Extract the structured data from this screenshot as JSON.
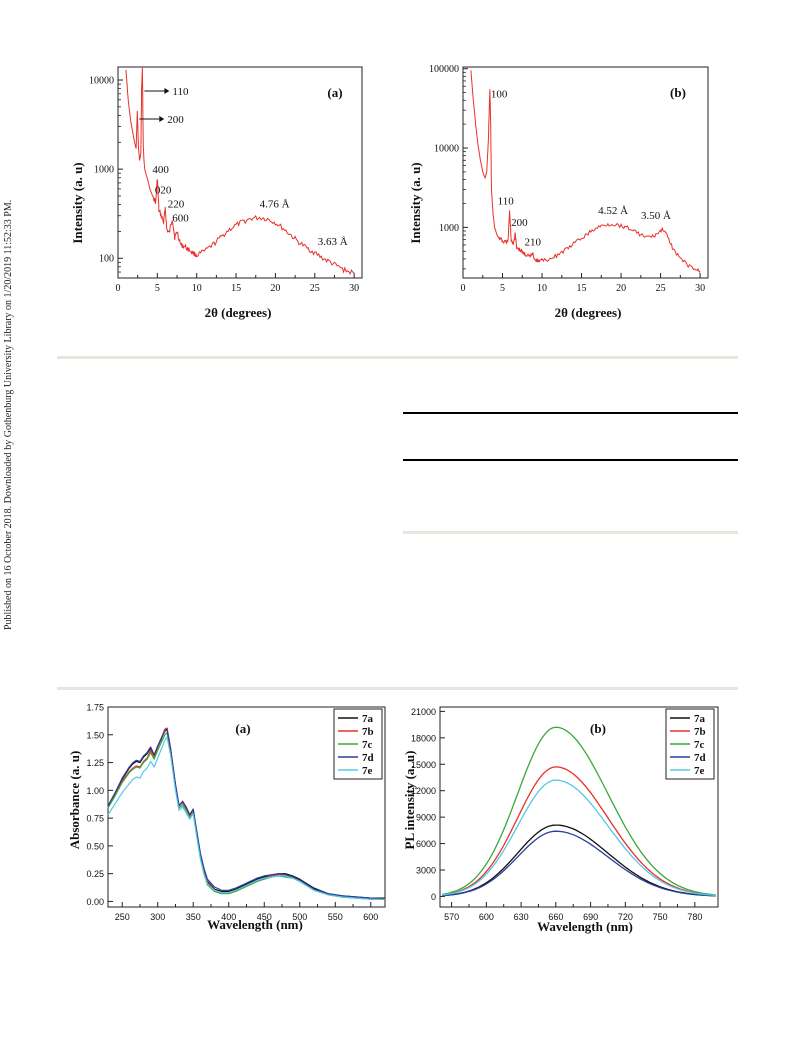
{
  "sidebar_note": "Published on 16 October 2018. Downloaded by Gothenburg University Library on 1/20/2019 11:52:33 PM.",
  "chart_data": [
    {
      "id": "xrd_a",
      "type": "line",
      "panel_label": "(a)",
      "xlabel": "2θ (degrees)",
      "ylabel": "Intensity (a. u)",
      "xlim": [
        0,
        31
      ],
      "ylim": [
        60,
        14000
      ],
      "yscale": "log",
      "xticks": [
        0,
        5,
        10,
        15,
        20,
        25,
        30
      ],
      "yticks": [
        100,
        1000,
        10000
      ],
      "grid": false,
      "series": [
        {
          "color": "#e8302a",
          "x": [
            1.0,
            1.3,
            1.6,
            1.9,
            2.1,
            2.3,
            2.45,
            2.6,
            2.75,
            2.9,
            3.0,
            3.1,
            3.2,
            3.3,
            3.4,
            3.6,
            3.8,
            4.0,
            4.2,
            4.5,
            4.8,
            5.0,
            5.2,
            5.5,
            5.8,
            6.0,
            6.2,
            6.5,
            6.9,
            7.2,
            7.5,
            8.0,
            8.5,
            9.0,
            9.5,
            10,
            11,
            12,
            13,
            14,
            15,
            16,
            17,
            18,
            19,
            20,
            21,
            22,
            23,
            24,
            25,
            26,
            27,
            28,
            29,
            30
          ],
          "y": [
            13000,
            6000,
            3500,
            2500,
            2000,
            1700,
            4500,
            1700,
            1250,
            1500,
            8000,
            14000,
            2000,
            1250,
            1000,
            850,
            750,
            620,
            550,
            480,
            420,
            800,
            340,
            300,
            250,
            370,
            210,
            190,
            280,
            170,
            200,
            140,
            135,
            125,
            115,
            108,
            120,
            140,
            170,
            205,
            235,
            260,
            280,
            285,
            275,
            250,
            215,
            180,
            150,
            130,
            115,
            100,
            90,
            80,
            72,
            68
          ]
        }
      ],
      "annotations": [
        {
          "text": "110",
          "x": 3.1,
          "y": 14000,
          "arrow": true
        },
        {
          "text": "200",
          "x": 2.45,
          "y": 4500,
          "arrow": true
        },
        {
          "text": "400",
          "x": 5.0,
          "y": 800
        },
        {
          "text": "020",
          "x": 5.2,
          "y": 530
        },
        {
          "text": "220",
          "x": 6.2,
          "y": 370
        },
        {
          "text": "600",
          "x": 6.9,
          "y": 280
        },
        {
          "text": "4.76 Å",
          "x": 18.0,
          "y": 285
        },
        {
          "text": "3.63 Å",
          "x": 25.0,
          "y": 115
        }
      ]
    },
    {
      "id": "xrd_b",
      "type": "line",
      "panel_label": "(b)",
      "xlabel": "2θ (degrees)",
      "ylabel": "Intensity (a. u)",
      "xlim": [
        0,
        31
      ],
      "ylim": [
        230,
        105000
      ],
      "yscale": "log",
      "xticks": [
        0,
        5,
        10,
        15,
        20,
        25,
        30
      ],
      "yticks": [
        1000,
        10000,
        100000
      ],
      "grid": false,
      "series": [
        {
          "color": "#e8302a",
          "x": [
            1.0,
            1.3,
            1.6,
            1.9,
            2.2,
            2.5,
            2.8,
            3.0,
            3.2,
            3.4,
            3.5,
            3.6,
            3.8,
            4.0,
            4.3,
            4.6,
            5.0,
            5.5,
            5.7,
            5.9,
            6.1,
            6.4,
            6.6,
            6.8,
            7.2,
            7.6,
            8.0,
            8.5,
            8.8,
            9.1,
            9.5,
            10,
            11,
            12,
            13,
            14,
            15,
            16,
            17,
            18,
            19,
            20,
            21,
            22,
            23,
            24,
            24.8,
            25.3,
            25.8,
            26.5,
            27.5,
            28.5,
            29.5,
            30
          ],
          "y": [
            95000,
            40000,
            20000,
            11000,
            7000,
            5000,
            4200,
            5000,
            12000,
            55000,
            20000,
            3000,
            1500,
            1000,
            800,
            720,
            680,
            650,
            700,
            1550,
            700,
            620,
            850,
            560,
            520,
            480,
            450,
            420,
            470,
            400,
            380,
            380,
            400,
            450,
            520,
            620,
            730,
            860,
            990,
            1080,
            1100,
            1050,
            980,
            860,
            760,
            760,
            860,
            960,
            780,
            560,
            400,
            330,
            290,
            280
          ]
        }
      ],
      "annotations": [
        {
          "text": "100",
          "x": 3.4,
          "y": 55000
        },
        {
          "text": "110",
          "x": 5.9,
          "y": 1550
        },
        {
          "text": "200",
          "x": 6.6,
          "y": 850
        },
        {
          "text": "210",
          "x": 8.8,
          "y": 470
        },
        {
          "text": "4.52 Å",
          "x": 19.0,
          "y": 1100
        },
        {
          "text": "3.50 Å",
          "x": 25.3,
          "y": 960
        }
      ]
    },
    {
      "id": "abs",
      "type": "line",
      "panel_label": "(a)",
      "xlabel": "Wavelength (nm)",
      "ylabel": "Absorbance (a. u)",
      "xlim": [
        230,
        620
      ],
      "ylim": [
        -0.05,
        1.75
      ],
      "xticks": [
        250,
        300,
        350,
        400,
        450,
        500,
        550,
        600
      ],
      "yticks": [
        0.0,
        0.25,
        0.5,
        0.75,
        1.0,
        1.25,
        1.5,
        1.75
      ],
      "ytick_labels": [
        "0.00",
        "0.25",
        "0.50",
        "0.75",
        "1.00",
        "1.25",
        "1.50",
        "1.75"
      ],
      "grid": false,
      "legend": "top-right",
      "x": [
        230,
        240,
        250,
        260,
        265,
        270,
        275,
        280,
        285,
        290,
        295,
        300,
        305,
        310,
        313,
        318,
        325,
        330,
        335,
        340,
        345,
        350,
        355,
        360,
        365,
        370,
        380,
        390,
        400,
        410,
        420,
        430,
        440,
        450,
        460,
        470,
        480,
        490,
        500,
        510,
        520,
        540,
        560,
        580,
        600,
        620
      ],
      "series": [
        {
          "name": "7a",
          "color": "#111111",
          "y": [
            0.86,
            0.97,
            1.1,
            1.2,
            1.24,
            1.26,
            1.25,
            1.3,
            1.33,
            1.38,
            1.31,
            1.39,
            1.46,
            1.54,
            1.56,
            1.38,
            1.05,
            0.86,
            0.9,
            0.85,
            0.78,
            0.83,
            0.62,
            0.42,
            0.28,
            0.18,
            0.11,
            0.09,
            0.09,
            0.11,
            0.14,
            0.17,
            0.2,
            0.22,
            0.24,
            0.25,
            0.25,
            0.23,
            0.2,
            0.16,
            0.12,
            0.07,
            0.05,
            0.04,
            0.03,
            0.03
          ]
        },
        {
          "name": "7b",
          "color": "#e8302a",
          "y": [
            0.85,
            0.96,
            1.08,
            1.17,
            1.2,
            1.22,
            1.21,
            1.26,
            1.29,
            1.36,
            1.3,
            1.39,
            1.47,
            1.55,
            1.56,
            1.38,
            1.05,
            0.86,
            0.89,
            0.84,
            0.77,
            0.82,
            0.61,
            0.41,
            0.27,
            0.17,
            0.1,
            0.08,
            0.08,
            0.1,
            0.13,
            0.16,
            0.19,
            0.21,
            0.23,
            0.24,
            0.24,
            0.22,
            0.19,
            0.15,
            0.11,
            0.06,
            0.04,
            0.03,
            0.02,
            0.02
          ]
        },
        {
          "name": "7c",
          "color": "#3aa83a",
          "y": [
            0.84,
            0.95,
            1.07,
            1.16,
            1.19,
            1.21,
            1.2,
            1.25,
            1.28,
            1.34,
            1.28,
            1.36,
            1.43,
            1.5,
            1.52,
            1.35,
            1.03,
            0.84,
            0.87,
            0.82,
            0.75,
            0.8,
            0.59,
            0.39,
            0.25,
            0.15,
            0.09,
            0.07,
            0.07,
            0.09,
            0.12,
            0.15,
            0.18,
            0.2,
            0.22,
            0.23,
            0.22,
            0.21,
            0.18,
            0.14,
            0.1,
            0.06,
            0.04,
            0.03,
            0.02,
            0.02
          ]
        },
        {
          "name": "7d",
          "color": "#2a3f9a",
          "y": [
            0.86,
            0.98,
            1.11,
            1.21,
            1.25,
            1.27,
            1.26,
            1.31,
            1.34,
            1.39,
            1.32,
            1.4,
            1.47,
            1.53,
            1.55,
            1.37,
            1.05,
            0.86,
            0.9,
            0.85,
            0.78,
            0.83,
            0.63,
            0.44,
            0.3,
            0.2,
            0.13,
            0.1,
            0.1,
            0.12,
            0.15,
            0.18,
            0.21,
            0.23,
            0.24,
            0.25,
            0.24,
            0.22,
            0.19,
            0.15,
            0.11,
            0.07,
            0.05,
            0.04,
            0.03,
            0.02
          ]
        },
        {
          "name": "7e",
          "color": "#56c8e8",
          "y": [
            0.78,
            0.88,
            0.98,
            1.06,
            1.1,
            1.12,
            1.11,
            1.17,
            1.2,
            1.26,
            1.21,
            1.29,
            1.37,
            1.45,
            1.48,
            1.32,
            1.0,
            0.82,
            0.85,
            0.8,
            0.74,
            0.79,
            0.58,
            0.39,
            0.25,
            0.16,
            0.1,
            0.08,
            0.08,
            0.1,
            0.13,
            0.16,
            0.19,
            0.21,
            0.22,
            0.23,
            0.23,
            0.21,
            0.18,
            0.14,
            0.1,
            0.06,
            0.04,
            0.03,
            0.02,
            0.02
          ]
        }
      ]
    },
    {
      "id": "pl",
      "type": "line",
      "panel_label": "(b)",
      "xlabel": "Wavelength (nm)",
      "ylabel": "PL intensity (a. u)",
      "xlim": [
        560,
        800
      ],
      "ylim": [
        -1200,
        21500
      ],
      "xticks": [
        570,
        600,
        630,
        660,
        690,
        720,
        750,
        780
      ],
      "yticks": [
        0,
        3000,
        6000,
        9000,
        12000,
        15000,
        18000,
        21000
      ],
      "grid": false,
      "legend": "top-right",
      "peak_wavelength": 660,
      "series": [
        {
          "name": "7a",
          "color": "#111111",
          "peak": 8100
        },
        {
          "name": "7b",
          "color": "#e8302a",
          "peak": 14700
        },
        {
          "name": "7c",
          "color": "#3aa83a",
          "peak": 19200
        },
        {
          "name": "7d",
          "color": "#2a3f9a",
          "peak": 7400
        },
        {
          "name": "7e",
          "color": "#56c8e8",
          "peak": 13200
        }
      ]
    }
  ]
}
